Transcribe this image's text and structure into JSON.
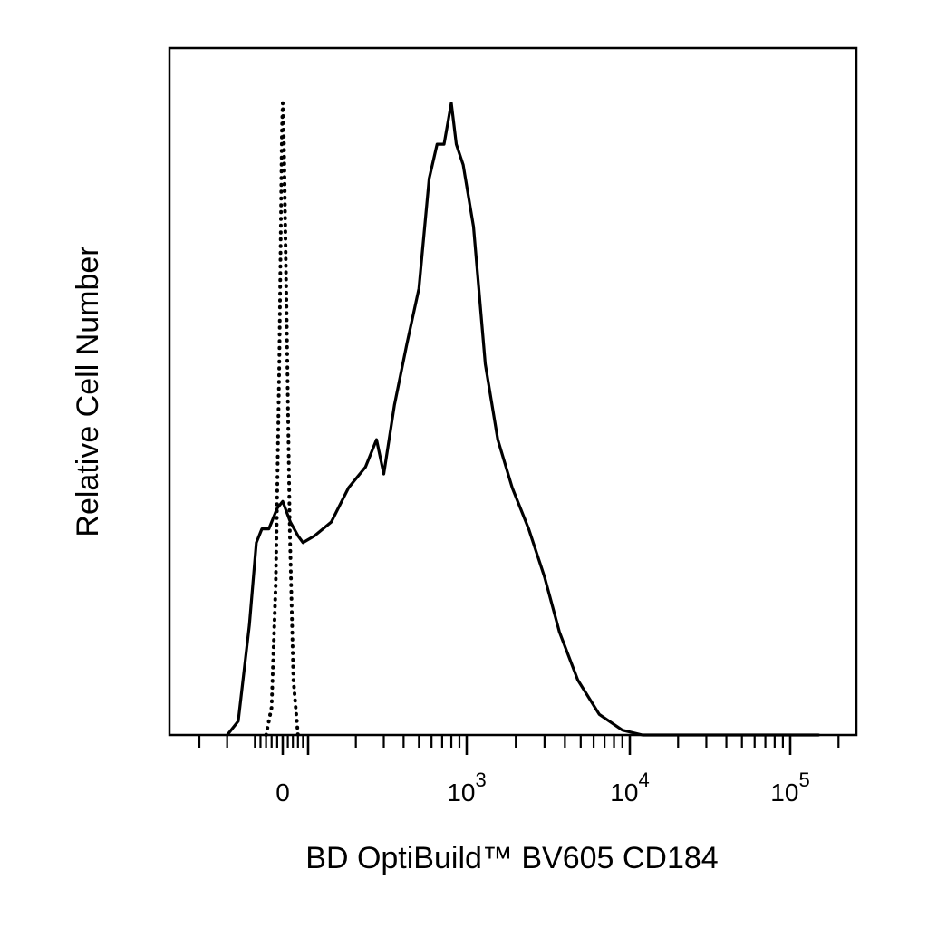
{
  "chart_data": {
    "type": "line",
    "title": "",
    "xlabel": "BD OptiBuild™ BV605 CD184",
    "ylabel": "Relative Cell Number",
    "x_scale": "biexponential",
    "xlim": [
      -200,
      150000
    ],
    "ylim": [
      0,
      1.0
    ],
    "grid": false,
    "legend": "none",
    "x_tick_labels": [
      {
        "value": 0,
        "base": "0",
        "exp": ""
      },
      {
        "value": 1000,
        "base": "10",
        "exp": "3"
      },
      {
        "value": 10000,
        "base": "10",
        "exp": "4"
      },
      {
        "value": 100000,
        "base": "10",
        "exp": "5"
      }
    ],
    "series": [
      {
        "style": "dotted",
        "color": "#000000",
        "points": [
          [
            -60,
            0.0
          ],
          [
            -40,
            0.04
          ],
          [
            -25,
            0.22
          ],
          [
            -12,
            0.55
          ],
          [
            -3,
            0.88
          ],
          [
            0,
            0.92
          ],
          [
            5,
            0.86
          ],
          [
            15,
            0.62
          ],
          [
            28,
            0.3
          ],
          [
            42,
            0.08
          ],
          [
            60,
            0.0
          ]
        ]
      },
      {
        "style": "solid",
        "color": "#000000",
        "points": [
          [
            -200,
            0.0
          ],
          [
            -160,
            0.02
          ],
          [
            -120,
            0.16
          ],
          [
            -95,
            0.28
          ],
          [
            -75,
            0.3
          ],
          [
            -50,
            0.3
          ],
          [
            -20,
            0.33
          ],
          [
            0,
            0.34
          ],
          [
            30,
            0.31
          ],
          [
            60,
            0.29
          ],
          [
            80,
            0.28
          ],
          [
            110,
            0.29
          ],
          [
            140,
            0.31
          ],
          [
            180,
            0.36
          ],
          [
            230,
            0.39
          ],
          [
            270,
            0.43
          ],
          [
            300,
            0.38
          ],
          [
            350,
            0.48
          ],
          [
            420,
            0.57
          ],
          [
            500,
            0.65
          ],
          [
            580,
            0.81
          ],
          [
            650,
            0.86
          ],
          [
            720,
            0.86
          ],
          [
            800,
            0.92
          ],
          [
            860,
            0.86
          ],
          [
            950,
            0.83
          ],
          [
            1100,
            0.74
          ],
          [
            1300,
            0.54
          ],
          [
            1550,
            0.43
          ],
          [
            1900,
            0.36
          ],
          [
            2400,
            0.3
          ],
          [
            3000,
            0.23
          ],
          [
            3700,
            0.15
          ],
          [
            4800,
            0.08
          ],
          [
            6500,
            0.03
          ],
          [
            9000,
            0.007
          ],
          [
            12000,
            0.0
          ],
          [
            150000,
            0.0
          ]
        ]
      }
    ]
  }
}
